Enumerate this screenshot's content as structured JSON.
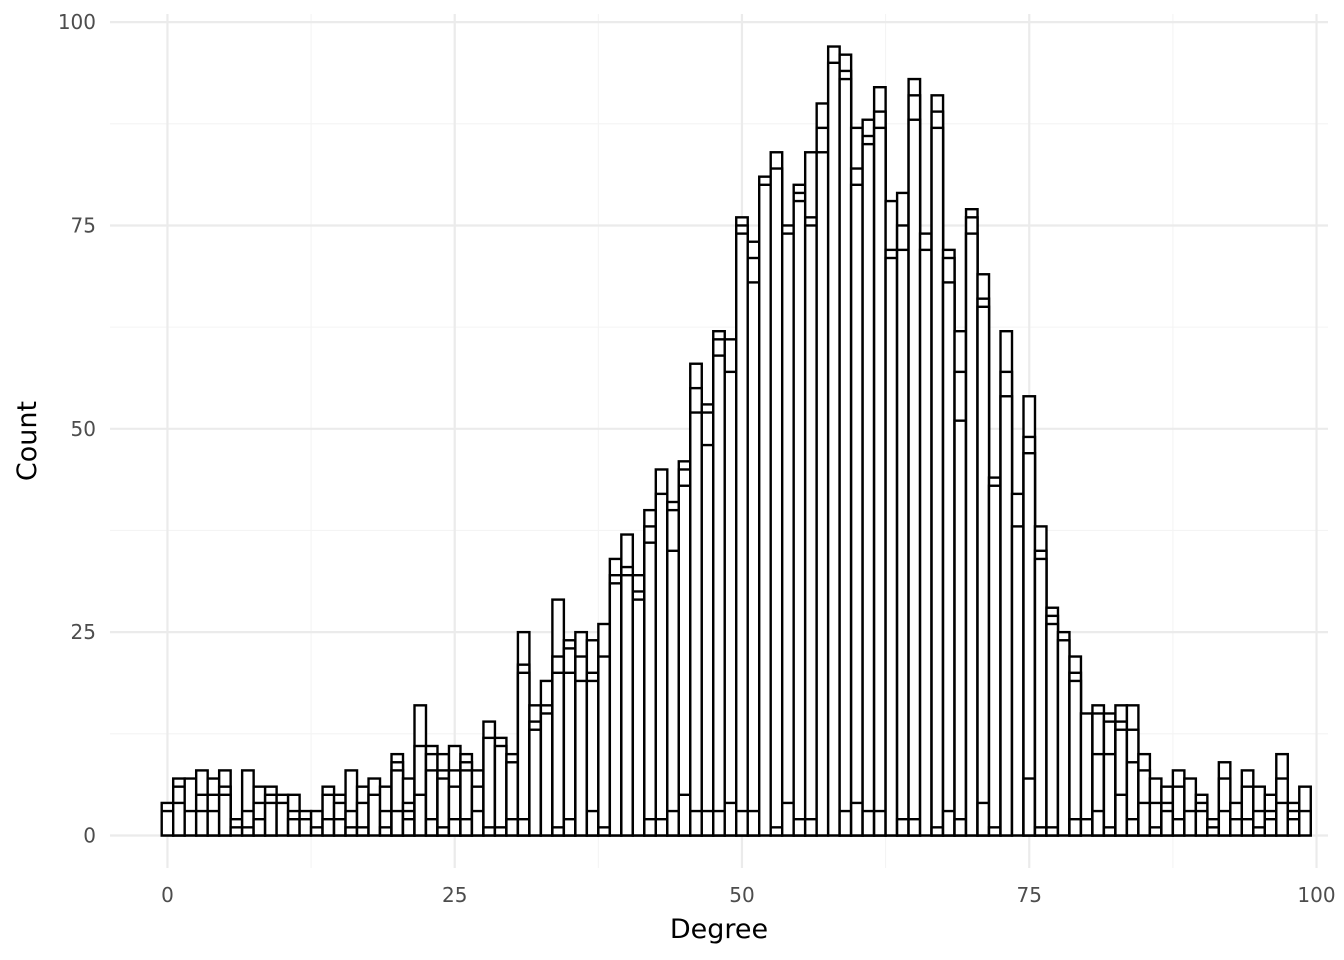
{
  "chart_data": {
    "type": "bar",
    "subtype": "stacked-histogram-outlined",
    "xlabel": "Degree",
    "ylabel": "Count",
    "xlim": [
      -5,
      101
    ],
    "ylim": [
      -4,
      101
    ],
    "x_ticks": [
      0,
      25,
      50,
      75,
      100
    ],
    "x_tick_labels": [
      "0",
      "25",
      "50",
      "75",
      "100"
    ],
    "y_ticks": [
      0,
      25,
      50,
      75,
      100
    ],
    "y_tick_labels": [
      "0",
      "25",
      "50",
      "75",
      "100"
    ],
    "grid": true,
    "legend": "none",
    "bin_width": 1,
    "colors": {
      "fill": "#ffffff",
      "outline": "#000000",
      "grid": "#ebebeb"
    },
    "bins": [
      {
        "x": 0,
        "stack": [
          3,
          4
        ]
      },
      {
        "x": 1,
        "stack": [
          4,
          6,
          7
        ]
      },
      {
        "x": 2,
        "stack": [
          3,
          7
        ]
      },
      {
        "x": 3,
        "stack": [
          3,
          5,
          8
        ]
      },
      {
        "x": 4,
        "stack": [
          3,
          5,
          7
        ]
      },
      {
        "x": 5,
        "stack": [
          5,
          6,
          8
        ]
      },
      {
        "x": 6,
        "stack": [
          1,
          2
        ]
      },
      {
        "x": 7,
        "stack": [
          1,
          3,
          8
        ]
      },
      {
        "x": 8,
        "stack": [
          2,
          4,
          6
        ]
      },
      {
        "x": 9,
        "stack": [
          4,
          5,
          6
        ]
      },
      {
        "x": 10,
        "stack": [
          4,
          5
        ]
      },
      {
        "x": 11,
        "stack": [
          2,
          3,
          5
        ]
      },
      {
        "x": 12,
        "stack": [
          2,
          3
        ]
      },
      {
        "x": 13,
        "stack": [
          1,
          3
        ]
      },
      {
        "x": 14,
        "stack": [
          2,
          5,
          6
        ]
      },
      {
        "x": 15,
        "stack": [
          2,
          4,
          5
        ]
      },
      {
        "x": 16,
        "stack": [
          1,
          3,
          8
        ]
      },
      {
        "x": 17,
        "stack": [
          1,
          4,
          6
        ]
      },
      {
        "x": 18,
        "stack": [
          5,
          7
        ]
      },
      {
        "x": 19,
        "stack": [
          1,
          3,
          6
        ]
      },
      {
        "x": 20,
        "stack": [
          3,
          8,
          9,
          10
        ]
      },
      {
        "x": 21,
        "stack": [
          2,
          3,
          4,
          7
        ]
      },
      {
        "x": 22,
        "stack": [
          5,
          11,
          16
        ]
      },
      {
        "x": 23,
        "stack": [
          2,
          8,
          10,
          11
        ]
      },
      {
        "x": 24,
        "stack": [
          1,
          7,
          8,
          10
        ]
      },
      {
        "x": 25,
        "stack": [
          2,
          6,
          8,
          11
        ]
      },
      {
        "x": 26,
        "stack": [
          2,
          8,
          9,
          10
        ]
      },
      {
        "x": 27,
        "stack": [
          3,
          6,
          8
        ]
      },
      {
        "x": 28,
        "stack": [
          1,
          12,
          14
        ]
      },
      {
        "x": 29,
        "stack": [
          1,
          11,
          12
        ]
      },
      {
        "x": 30,
        "stack": [
          2,
          9,
          10
        ]
      },
      {
        "x": 31,
        "stack": [
          2,
          20,
          21,
          25
        ]
      },
      {
        "x": 32,
        "stack": [
          13,
          14,
          16
        ]
      },
      {
        "x": 33,
        "stack": [
          15,
          16,
          19
        ]
      },
      {
        "x": 34,
        "stack": [
          1,
          20,
          22,
          29
        ]
      },
      {
        "x": 35,
        "stack": [
          2,
          20,
          23,
          24
        ]
      },
      {
        "x": 36,
        "stack": [
          19,
          22,
          25
        ]
      },
      {
        "x": 37,
        "stack": [
          3,
          19,
          20,
          24
        ]
      },
      {
        "x": 38,
        "stack": [
          1,
          22,
          26
        ]
      },
      {
        "x": 39,
        "stack": [
          31,
          32,
          34
        ]
      },
      {
        "x": 40,
        "stack": [
          32,
          33,
          37
        ]
      },
      {
        "x": 41,
        "stack": [
          29,
          30,
          32
        ]
      },
      {
        "x": 42,
        "stack": [
          2,
          36,
          38,
          40
        ]
      },
      {
        "x": 43,
        "stack": [
          2,
          42,
          45
        ]
      },
      {
        "x": 44,
        "stack": [
          3,
          35,
          40,
          41
        ]
      },
      {
        "x": 45,
        "stack": [
          5,
          43,
          45,
          46
        ]
      },
      {
        "x": 46,
        "stack": [
          3,
          52,
          55,
          58
        ]
      },
      {
        "x": 47,
        "stack": [
          3,
          48,
          52,
          53
        ]
      },
      {
        "x": 48,
        "stack": [
          3,
          59,
          61,
          62
        ]
      },
      {
        "x": 49,
        "stack": [
          4,
          57,
          61
        ]
      },
      {
        "x": 50,
        "stack": [
          3,
          74,
          75,
          76
        ]
      },
      {
        "x": 51,
        "stack": [
          3,
          68,
          71,
          73
        ]
      },
      {
        "x": 52,
        "stack": [
          80,
          81
        ]
      },
      {
        "x": 53,
        "stack": [
          1,
          82,
          84
        ]
      },
      {
        "x": 54,
        "stack": [
          4,
          74,
          75
        ]
      },
      {
        "x": 55,
        "stack": [
          2,
          78,
          79,
          80
        ]
      },
      {
        "x": 56,
        "stack": [
          2,
          75,
          76,
          84
        ]
      },
      {
        "x": 57,
        "stack": [
          84,
          87,
          90
        ]
      },
      {
        "x": 58,
        "stack": [
          95,
          97
        ]
      },
      {
        "x": 59,
        "stack": [
          3,
          93,
          94,
          96
        ]
      },
      {
        "x": 60,
        "stack": [
          4,
          80,
          82,
          87
        ]
      },
      {
        "x": 61,
        "stack": [
          3,
          85,
          86,
          88
        ]
      },
      {
        "x": 62,
        "stack": [
          3,
          87,
          89,
          92
        ]
      },
      {
        "x": 63,
        "stack": [
          71,
          72,
          78
        ]
      },
      {
        "x": 64,
        "stack": [
          2,
          72,
          75,
          79
        ]
      },
      {
        "x": 65,
        "stack": [
          2,
          88,
          91,
          93
        ]
      },
      {
        "x": 66,
        "stack": [
          72,
          74
        ]
      },
      {
        "x": 67,
        "stack": [
          1,
          87,
          89,
          91
        ]
      },
      {
        "x": 68,
        "stack": [
          3,
          68,
          71,
          72
        ]
      },
      {
        "x": 69,
        "stack": [
          2,
          51,
          57,
          62
        ]
      },
      {
        "x": 70,
        "stack": [
          74,
          76,
          77
        ]
      },
      {
        "x": 71,
        "stack": [
          4,
          65,
          66,
          69
        ]
      },
      {
        "x": 72,
        "stack": [
          1,
          43,
          44
        ]
      },
      {
        "x": 73,
        "stack": [
          54,
          57,
          62
        ]
      },
      {
        "x": 74,
        "stack": [
          38,
          42
        ]
      },
      {
        "x": 75,
        "stack": [
          7,
          47,
          49,
          54
        ]
      },
      {
        "x": 76,
        "stack": [
          1,
          34,
          35,
          38
        ]
      },
      {
        "x": 77,
        "stack": [
          1,
          26,
          27,
          28
        ]
      },
      {
        "x": 78,
        "stack": [
          24,
          25
        ]
      },
      {
        "x": 79,
        "stack": [
          2,
          19,
          20,
          22
        ]
      },
      {
        "x": 80,
        "stack": [
          2,
          15
        ]
      },
      {
        "x": 81,
        "stack": [
          3,
          10,
          15,
          16
        ]
      },
      {
        "x": 82,
        "stack": [
          1,
          10,
          14,
          15
        ]
      },
      {
        "x": 83,
        "stack": [
          5,
          13,
          14,
          16
        ]
      },
      {
        "x": 84,
        "stack": [
          2,
          9,
          13,
          16
        ]
      },
      {
        "x": 85,
        "stack": [
          4,
          8,
          10
        ]
      },
      {
        "x": 86,
        "stack": [
          1,
          4,
          7
        ]
      },
      {
        "x": 87,
        "stack": [
          3,
          4,
          6
        ]
      },
      {
        "x": 88,
        "stack": [
          2,
          6,
          8
        ]
      },
      {
        "x": 89,
        "stack": [
          3,
          7
        ]
      },
      {
        "x": 90,
        "stack": [
          3,
          4,
          5
        ]
      },
      {
        "x": 91,
        "stack": [
          1,
          2
        ]
      },
      {
        "x": 92,
        "stack": [
          3,
          7,
          9
        ]
      },
      {
        "x": 93,
        "stack": [
          2,
          4
        ]
      },
      {
        "x": 94,
        "stack": [
          2,
          6,
          8
        ]
      },
      {
        "x": 95,
        "stack": [
          1,
          3,
          6
        ]
      },
      {
        "x": 96,
        "stack": [
          2,
          3,
          5
        ]
      },
      {
        "x": 97,
        "stack": [
          4,
          7,
          10
        ]
      },
      {
        "x": 98,
        "stack": [
          2,
          3,
          4
        ]
      },
      {
        "x": 99,
        "stack": [
          3,
          6
        ]
      }
    ]
  }
}
